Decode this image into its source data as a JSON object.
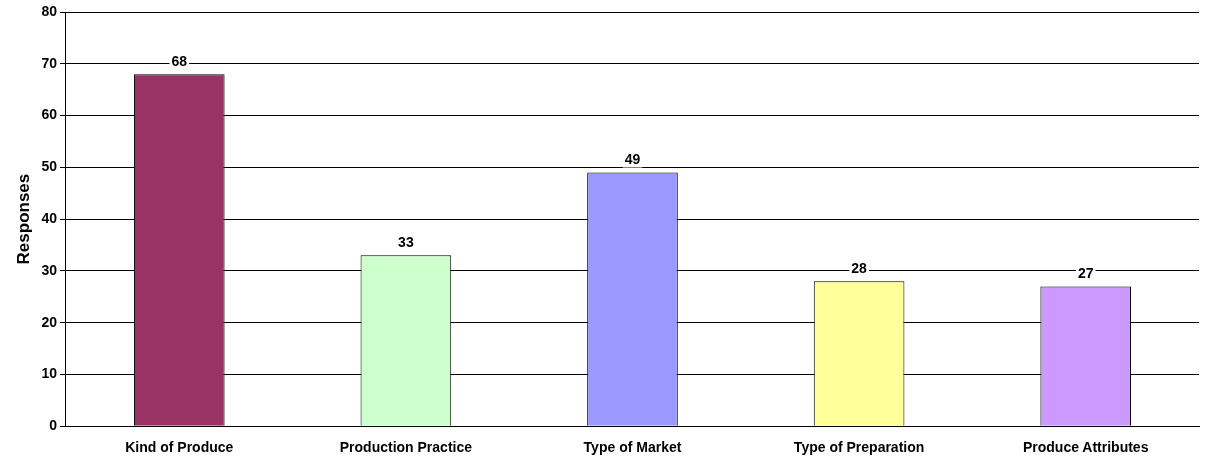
{
  "chart_data": {
    "type": "bar",
    "ylabel": "Responses",
    "categories": [
      "Kind of Produce",
      "Production Practice",
      "Type of Market",
      "Type of Preparation",
      "Produce Attributes"
    ],
    "values": [
      68,
      33,
      49,
      28,
      27
    ],
    "colors": [
      "#993366",
      "#ccffcc",
      "#9999ff",
      "#ffff99",
      "#cc99ff"
    ],
    "ylim": [
      0,
      80
    ],
    "yticks": [
      0,
      10,
      20,
      30,
      40,
      50,
      60,
      70,
      80
    ],
    "grid": "y",
    "legend": false,
    "data_labels": true
  }
}
